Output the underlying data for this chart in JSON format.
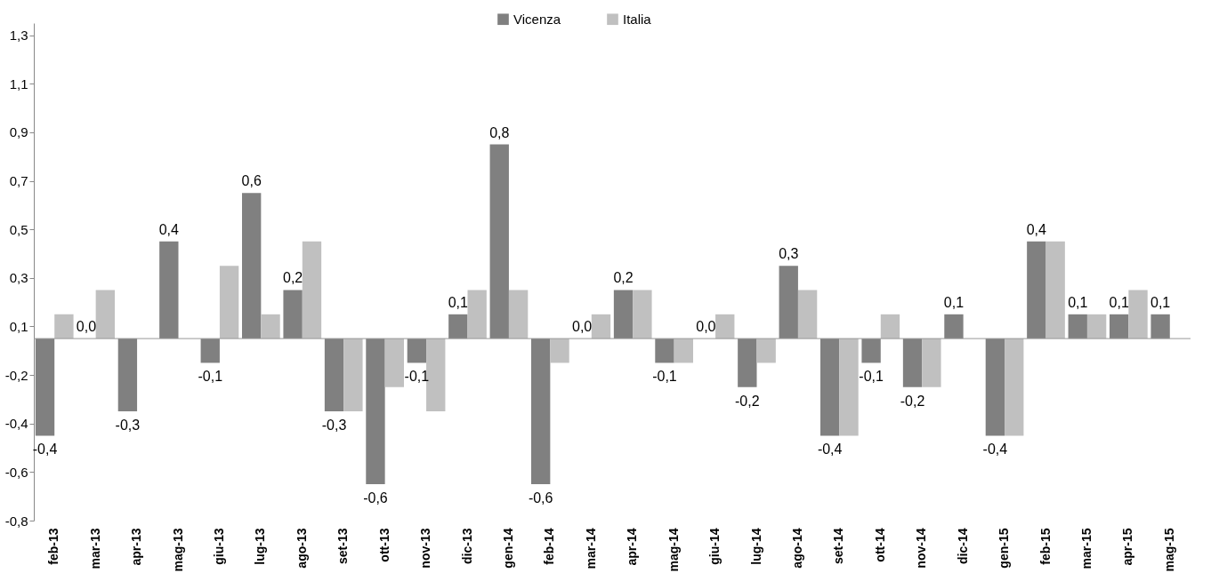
{
  "chart_data": {
    "type": "bar",
    "categories": [
      "feb-13",
      "mar-13",
      "apr-13",
      "mag-13",
      "giu-13",
      "lug-13",
      "ago-13",
      "set-13",
      "ott-13",
      "nov-13",
      "dic-13",
      "gen-14",
      "feb-14",
      "mar-14",
      "apr-14",
      "mag-14",
      "giu-14",
      "lug-14",
      "ago-14",
      "set-14",
      "ott-14",
      "nov-14",
      "dic-14",
      "gen-15",
      "feb-15",
      "mar-15",
      "apr-15",
      "mag-15"
    ],
    "series": [
      {
        "name": "Vicenza",
        "color": "#808080",
        "values": [
          -0.4,
          0.0,
          -0.3,
          0.4,
          -0.1,
          0.6,
          0.2,
          -0.3,
          -0.6,
          -0.1,
          0.1,
          0.8,
          -0.6,
          0.0,
          0.2,
          -0.1,
          0.0,
          -0.2,
          0.3,
          -0.4,
          -0.1,
          -0.2,
          0.1,
          -0.4,
          0.4,
          0.1,
          0.1,
          0.1
        ],
        "value_labels": [
          "-0,4",
          "0,0",
          "-0,3",
          "0,4",
          "-0,1",
          "0,6",
          "0,2",
          "-0,3",
          "-0,6",
          "-0,1",
          "0,1",
          "0,8",
          "-0,6",
          "0,0",
          "0,2",
          "-0,1",
          "0,0",
          "-0,2",
          "0,3",
          "-0,4",
          "-0,1",
          "-0,2",
          "0,1",
          "-0,4",
          "0,4",
          "0,1",
          "0,1",
          "0,1"
        ]
      },
      {
        "name": "Italia",
        "color": "#c0c0c0",
        "values": [
          0.1,
          0.2,
          0.0,
          0.0,
          0.3,
          0.1,
          0.4,
          -0.3,
          -0.2,
          -0.3,
          0.2,
          0.2,
          -0.1,
          0.1,
          0.2,
          -0.1,
          0.1,
          -0.1,
          0.2,
          -0.4,
          0.1,
          -0.2,
          0.0,
          -0.4,
          0.4,
          0.1,
          0.2,
          null
        ]
      }
    ],
    "ylim": [
      -0.75,
      1.3
    ],
    "yticks": [
      {
        "value": -0.75,
        "label": "-0,8"
      },
      {
        "value": -0.55,
        "label": "-0,6"
      },
      {
        "value": -0.35,
        "label": "-0,4"
      },
      {
        "value": -0.15,
        "label": "-0,2"
      },
      {
        "value": 0.05,
        "label": "0,1"
      },
      {
        "value": 0.25,
        "label": "0,3"
      },
      {
        "value": 0.45,
        "label": "0,5"
      },
      {
        "value": 0.65,
        "label": "0,7"
      },
      {
        "value": 0.85,
        "label": "0,9"
      },
      {
        "value": 1.05,
        "label": "1,1"
      },
      {
        "value": 1.25,
        "label": "1,3"
      }
    ],
    "grid": false,
    "legend": "top"
  }
}
